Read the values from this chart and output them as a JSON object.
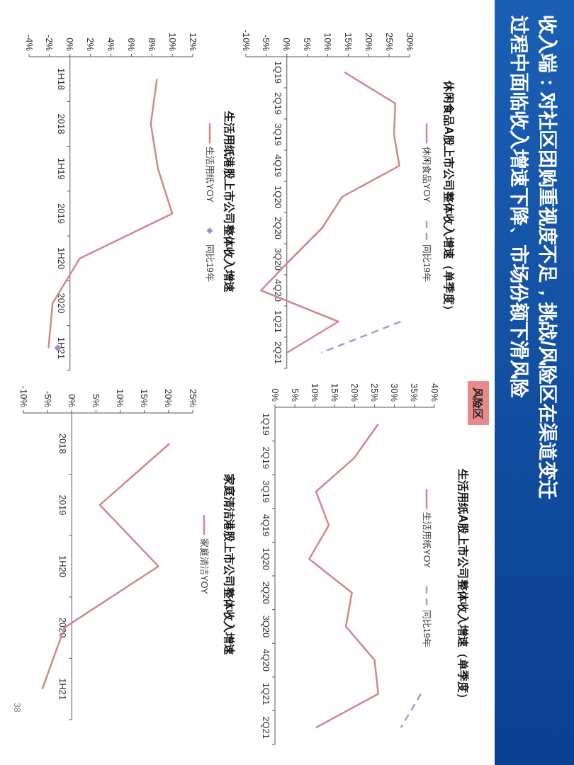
{
  "chart_data": [
    {
      "type": "line",
      "categories": [
        "1Q19",
        "2Q19",
        "3Q19",
        "4Q19",
        "1Q20",
        "2Q20",
        "3Q20",
        "4Q20",
        "1Q21",
        "2Q21"
      ],
      "series": [
        {
          "name": "休闲食品YOY",
          "color": "#d4868c",
          "values": [
            14.1,
            26.5,
            26.2,
            27.5,
            13.5,
            8.6,
            1.0,
            -6.3,
            12.6,
            0.0
          ]
        },
        {
          "name": "同比19年",
          "color": "#9f9fcc",
          "line_style": "dashed",
          "values": [
            null,
            null,
            null,
            null,
            null,
            null,
            null,
            null,
            27.8,
            8.4
          ]
        }
      ],
      "orientation": "horizontal",
      "xlim": [
        -10,
        30
      ],
      "xticks": [
        {
          "value": -10,
          "label": "-10%"
        },
        {
          "value": -5,
          "label": "-5%"
        },
        {
          "value": 0,
          "label": "0%"
        },
        {
          "value": 5,
          "label": "5%"
        },
        {
          "value": 10,
          "label": "10%"
        },
        {
          "value": 15,
          "label": "15%"
        },
        {
          "value": 20,
          "label": "20%"
        },
        {
          "value": 25,
          "label": "25%"
        },
        {
          "value": 30,
          "label": "30%"
        }
      ],
      "legend": "top",
      "grid": false,
      "marker": "none",
      "annotations": [
        "收入端：对社区团购重视度不足，挑战/风险区在渠道变迁过程中面临收入增速下降、市场份额下滑风险",
        "风险区",
        "休闲食品A股上市公司整体收入增速（单季度）"
      ]
    },
    {
      "type": "line",
      "annotations": [
        "生活用纸A股上市公司整体收入增速（单季度）"
      ],
      "categories": [
        "1Q19",
        "2Q19",
        "3Q19",
        "4Q19",
        "1Q20",
        "2Q20",
        "3Q20",
        "4Q20",
        "1Q21",
        "2Q21"
      ],
      "series": [
        {
          "name": "生活用纸YOY",
          "color": "#d4868c",
          "values": [
            25.9,
            19.9,
            10.3,
            13.5,
            8.6,
            19.3,
            17.8,
            25.0,
            25.9,
            10.3
          ]
        },
        {
          "name": "同比19年",
          "color": "#9f9fcc",
          "line_style": "dashed",
          "values": [
            null,
            null,
            null,
            null,
            null,
            null,
            null,
            null,
            36.6,
            31.6
          ]
        }
      ],
      "orientation": "horizontal",
      "xlim": [
        0,
        40
      ],
      "xticks": [
        {
          "value": 0,
          "label": "0%"
        },
        {
          "value": 5,
          "label": "5%"
        },
        {
          "value": 10,
          "label": "10%"
        },
        {
          "value": 15,
          "label": "15%"
        },
        {
          "value": 20,
          "label": "20%"
        },
        {
          "value": 25,
          "label": "25%"
        },
        {
          "value": 30,
          "label": "30%"
        },
        {
          "value": 35,
          "label": "35%"
        },
        {
          "value": 40,
          "label": "40%"
        }
      ],
      "legend": "top",
      "grid": false,
      "marker": "none"
    },
    {
      "type": "line",
      "annotations": [
        "生活用纸港股上市公司整体收入增速"
      ],
      "categories": [
        "1H18",
        "2018",
        "1H19",
        "2019",
        "1H20",
        "2020",
        "1H21"
      ],
      "series": [
        {
          "name": "生活用纸YOY",
          "color": "#d4868c",
          "values": [
            8.5,
            7.9,
            8.6,
            10.0,
            0.95,
            -1.7,
            -2.1
          ]
        },
        {
          "name": "同比19年",
          "color": "#9d8fc4",
          "type": "scatter",
          "marker": "diamond",
          "values": [
            null,
            null,
            null,
            null,
            null,
            null,
            -1.2
          ]
        }
      ],
      "orientation": "horizontal",
      "xlim": [
        -4,
        12
      ],
      "xticks": [
        {
          "value": -4,
          "label": "-4%"
        },
        {
          "value": -2,
          "label": "-2%"
        },
        {
          "value": 0,
          "label": "0%"
        },
        {
          "value": 2,
          "label": "2%"
        },
        {
          "value": 4,
          "label": "4%"
        },
        {
          "value": 6,
          "label": "6%"
        },
        {
          "value": 8,
          "label": "8%"
        },
        {
          "value": 10,
          "label": "10%"
        },
        {
          "value": 12,
          "label": "12%"
        }
      ],
      "legend": "top",
      "grid": false
    },
    {
      "type": "line",
      "categories": [
        "2018",
        "2019",
        "1H20",
        "2020",
        "1H21"
      ],
      "series": [
        {
          "name": "家庭清洁YOY",
          "color": "#d4868c",
          "values": [
            20.2,
            5.8,
            17.9,
            -1.5,
            -6.1
          ]
        }
      ],
      "orientation": "horizontal",
      "xlim": [
        -10,
        25
      ],
      "xticks": [
        {
          "value": -10,
          "label": "-10%"
        },
        {
          "value": -5,
          "label": "-5%"
        },
        {
          "value": 0,
          "label": "0%"
        },
        {
          "value": 5,
          "label": "5%"
        },
        {
          "value": 10,
          "label": "10%"
        },
        {
          "value": 15,
          "label": "15%"
        },
        {
          "value": 20,
          "label": "20%"
        },
        {
          "value": 25,
          "label": "25%"
        }
      ],
      "legend": "top",
      "grid": false,
      "marker": "none",
      "annotations": [
        "家庭清洁港股上市公司整体收入增速",
        "38"
      ]
    }
  ]
}
